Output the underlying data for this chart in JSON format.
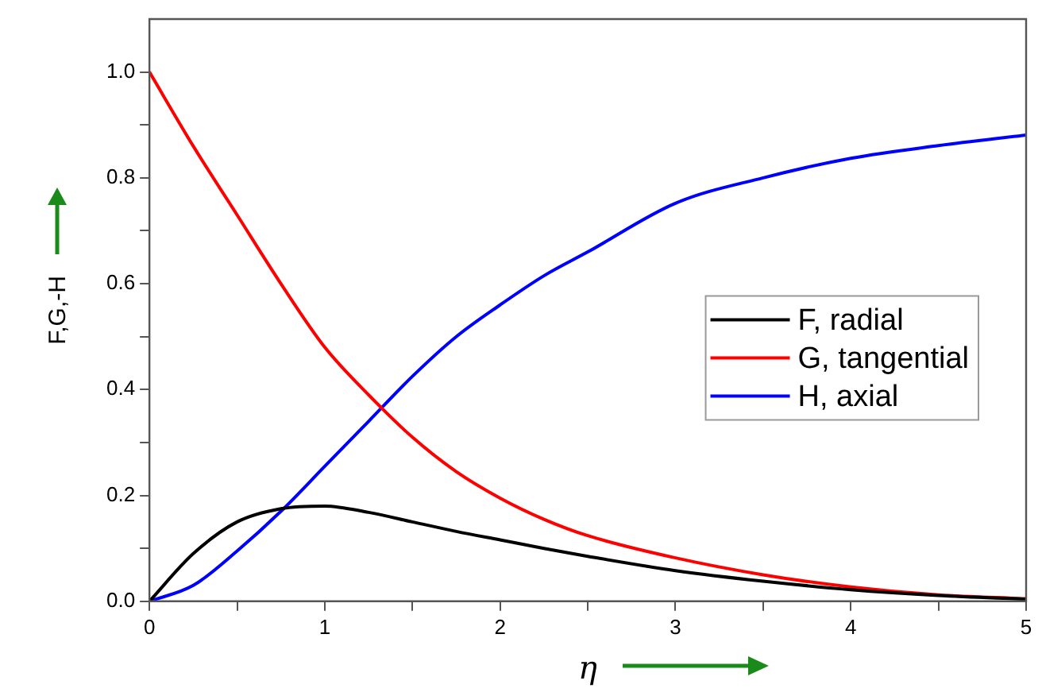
{
  "chart_data": {
    "type": "line",
    "xlabel": "η",
    "ylabel": "F,G,-H",
    "x": [
      0,
      0.25,
      0.5,
      0.75,
      1,
      1.25,
      1.5,
      1.75,
      2,
      2.25,
      2.5,
      3,
      3.5,
      4,
      4.5,
      5
    ],
    "series": [
      {
        "name": "F, radial",
        "color": "#000000",
        "values": [
          0,
          0.09,
          0.15,
          0.175,
          0.18,
          0.168,
          0.15,
          0.132,
          0.116,
          0.1,
          0.085,
          0.058,
          0.038,
          0.022,
          0.011,
          0.004
        ]
      },
      {
        "name": "G, tangential",
        "color": "#ff0000",
        "values": [
          1,
          0.86,
          0.73,
          0.6,
          0.48,
          0.39,
          0.31,
          0.245,
          0.195,
          0.155,
          0.124,
          0.082,
          0.05,
          0.027,
          0.012,
          0.005
        ]
      },
      {
        "name": "H, axial",
        "color": "#0000ff",
        "values": [
          0,
          0.03,
          0.095,
          0.17,
          0.255,
          0.34,
          0.425,
          0.5,
          0.56,
          0.615,
          0.66,
          0.752,
          0.8,
          0.837,
          0.861,
          0.881
        ]
      }
    ],
    "xlim": [
      0,
      5
    ],
    "ylim": [
      0,
      1.1
    ],
    "xticks": [
      0,
      {
        "value": 0.5,
        "label": null
      },
      1,
      {
        "value": 1.5,
        "label": null
      },
      2,
      {
        "value": 2.5,
        "label": null
      },
      3,
      {
        "value": 3.5,
        "label": null
      },
      4,
      {
        "value": 4.5,
        "label": null
      },
      5
    ],
    "yticks": [
      {
        "value": 0,
        "label": "0.0"
      },
      {
        "value": 0.1,
        "label": null
      },
      {
        "value": 0.2,
        "label": "0.2"
      },
      {
        "value": 0.3,
        "label": null
      },
      {
        "value": 0.4,
        "label": "0.4"
      },
      {
        "value": 0.5,
        "label": null
      },
      {
        "value": 0.6,
        "label": "0.6"
      },
      {
        "value": 0.7,
        "label": null
      },
      {
        "value": 0.8,
        "label": "0.8"
      },
      {
        "value": 0.9,
        "label": null
      },
      {
        "value": 1,
        "label": "1.0"
      }
    ],
    "legend": "center right",
    "grid": false,
    "marker": "none",
    "line_style": "solid"
  }
}
